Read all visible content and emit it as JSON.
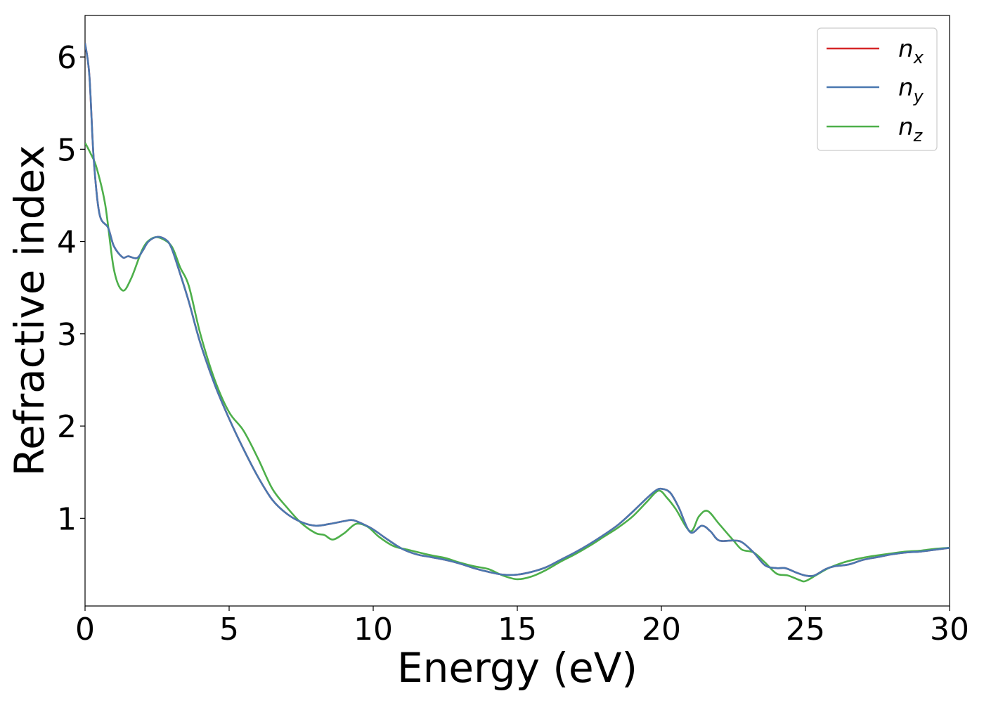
{
  "chart_data": {
    "type": "line",
    "title": "",
    "xlabel": "Energy (eV)",
    "ylabel": "Refractive index",
    "xlim": [
      0,
      30
    ],
    "ylim": [
      0.05,
      6.45
    ],
    "xticks": [
      0,
      5,
      10,
      15,
      20,
      25,
      30
    ],
    "yticks": [
      1,
      2,
      3,
      4,
      5,
      6
    ],
    "grid": false,
    "legend_position": "top-right",
    "series": [
      {
        "name": "n_x",
        "label_main": "n",
        "label_sub": "x",
        "color": "#d62728",
        "x": [
          0,
          0.15,
          0.3,
          0.5,
          0.8,
          1.0,
          1.3,
          1.5,
          1.8,
          2.0,
          2.2,
          2.5,
          2.8,
          3.0,
          3.3,
          3.6,
          4.0,
          4.5,
          5.0,
          5.5,
          6.0,
          6.5,
          7.0,
          7.5,
          8.0,
          8.5,
          9.0,
          9.3,
          9.7,
          10.0,
          10.5,
          11.0,
          11.5,
          12.0,
          12.5,
          13.0,
          13.5,
          14.0,
          14.5,
          15.0,
          15.5,
          16.0,
          16.5,
          17.0,
          17.5,
          18.0,
          18.5,
          19.0,
          19.5,
          19.8,
          20.0,
          20.3,
          20.6,
          21.0,
          21.4,
          21.7,
          22.0,
          22.5,
          22.8,
          23.2,
          23.6,
          24.0,
          24.3,
          24.7,
          25.0,
          25.3,
          25.7,
          26.0,
          26.5,
          27.0,
          27.5,
          28.0,
          28.5,
          29.0,
          29.5,
          30.0
        ],
        "y": [
          6.15,
          5.8,
          4.9,
          4.3,
          4.15,
          3.95,
          3.83,
          3.84,
          3.82,
          3.9,
          4.0,
          4.05,
          4.02,
          3.93,
          3.65,
          3.35,
          2.9,
          2.45,
          2.08,
          1.75,
          1.45,
          1.2,
          1.05,
          0.96,
          0.92,
          0.94,
          0.97,
          0.98,
          0.93,
          0.88,
          0.77,
          0.67,
          0.61,
          0.58,
          0.55,
          0.51,
          0.46,
          0.42,
          0.39,
          0.39,
          0.42,
          0.47,
          0.55,
          0.63,
          0.72,
          0.82,
          0.93,
          1.07,
          1.22,
          1.3,
          1.32,
          1.28,
          1.12,
          0.85,
          0.92,
          0.86,
          0.76,
          0.76,
          0.74,
          0.63,
          0.49,
          0.46,
          0.46,
          0.41,
          0.38,
          0.38,
          0.45,
          0.48,
          0.5,
          0.55,
          0.58,
          0.61,
          0.63,
          0.64,
          0.66,
          0.68
        ]
      },
      {
        "name": "n_y",
        "label_main": "n",
        "label_sub": "y",
        "color": "#4a78b0",
        "x": [
          0,
          0.15,
          0.3,
          0.5,
          0.8,
          1.0,
          1.3,
          1.5,
          1.8,
          2.0,
          2.2,
          2.5,
          2.8,
          3.0,
          3.3,
          3.6,
          4.0,
          4.5,
          5.0,
          5.5,
          6.0,
          6.5,
          7.0,
          7.5,
          8.0,
          8.5,
          9.0,
          9.3,
          9.7,
          10.0,
          10.5,
          11.0,
          11.5,
          12.0,
          12.5,
          13.0,
          13.5,
          14.0,
          14.5,
          15.0,
          15.5,
          16.0,
          16.5,
          17.0,
          17.5,
          18.0,
          18.5,
          19.0,
          19.5,
          19.8,
          20.0,
          20.3,
          20.6,
          21.0,
          21.4,
          21.7,
          22.0,
          22.5,
          22.8,
          23.2,
          23.6,
          24.0,
          24.3,
          24.7,
          25.0,
          25.3,
          25.7,
          26.0,
          26.5,
          27.0,
          27.5,
          28.0,
          28.5,
          29.0,
          29.5,
          30.0
        ],
        "y": [
          6.15,
          5.8,
          4.9,
          4.3,
          4.15,
          3.95,
          3.83,
          3.84,
          3.82,
          3.9,
          4.0,
          4.05,
          4.02,
          3.93,
          3.65,
          3.35,
          2.9,
          2.45,
          2.08,
          1.75,
          1.45,
          1.2,
          1.05,
          0.96,
          0.92,
          0.94,
          0.97,
          0.98,
          0.93,
          0.88,
          0.77,
          0.67,
          0.61,
          0.58,
          0.55,
          0.51,
          0.46,
          0.42,
          0.39,
          0.39,
          0.42,
          0.47,
          0.55,
          0.63,
          0.72,
          0.82,
          0.93,
          1.07,
          1.22,
          1.3,
          1.32,
          1.28,
          1.12,
          0.85,
          0.92,
          0.86,
          0.76,
          0.76,
          0.74,
          0.63,
          0.49,
          0.46,
          0.46,
          0.41,
          0.38,
          0.38,
          0.45,
          0.48,
          0.5,
          0.55,
          0.58,
          0.61,
          0.63,
          0.64,
          0.66,
          0.68
        ]
      },
      {
        "name": "n_z",
        "label_main": "n",
        "label_sub": "z",
        "color": "#4daf4a",
        "x": [
          0,
          0.2,
          0.4,
          0.7,
          1.0,
          1.3,
          1.6,
          2.0,
          2.3,
          2.6,
          3.0,
          3.3,
          3.6,
          4.0,
          4.5,
          5.0,
          5.5,
          6.0,
          6.5,
          7.0,
          7.5,
          8.0,
          8.3,
          8.6,
          9.0,
          9.4,
          9.8,
          10.2,
          10.7,
          11.2,
          12.0,
          12.5,
          13.0,
          13.5,
          14.0,
          14.5,
          15.0,
          15.5,
          16.0,
          16.5,
          17.0,
          17.5,
          18.0,
          18.5,
          19.0,
          19.5,
          19.9,
          20.2,
          20.5,
          21.0,
          21.3,
          21.6,
          22.0,
          22.5,
          22.8,
          23.2,
          23.6,
          24.0,
          24.4,
          24.8,
          25.0,
          25.4,
          25.8,
          26.3,
          26.8,
          27.3,
          28.0,
          28.5,
          29.0,
          29.5,
          30.0
        ],
        "y": [
          5.07,
          4.95,
          4.8,
          4.4,
          3.7,
          3.47,
          3.6,
          3.92,
          4.03,
          4.04,
          3.95,
          3.72,
          3.52,
          3.0,
          2.5,
          2.15,
          1.95,
          1.65,
          1.32,
          1.12,
          0.95,
          0.84,
          0.82,
          0.77,
          0.84,
          0.94,
          0.91,
          0.8,
          0.7,
          0.66,
          0.6,
          0.57,
          0.52,
          0.48,
          0.45,
          0.38,
          0.34,
          0.37,
          0.44,
          0.53,
          0.61,
          0.7,
          0.8,
          0.9,
          1.02,
          1.18,
          1.3,
          1.22,
          1.1,
          0.86,
          1.02,
          1.08,
          0.94,
          0.76,
          0.66,
          0.63,
          0.52,
          0.4,
          0.38,
          0.33,
          0.32,
          0.39,
          0.46,
          0.52,
          0.56,
          0.59,
          0.62,
          0.64,
          0.65,
          0.67,
          0.68
        ]
      }
    ]
  }
}
